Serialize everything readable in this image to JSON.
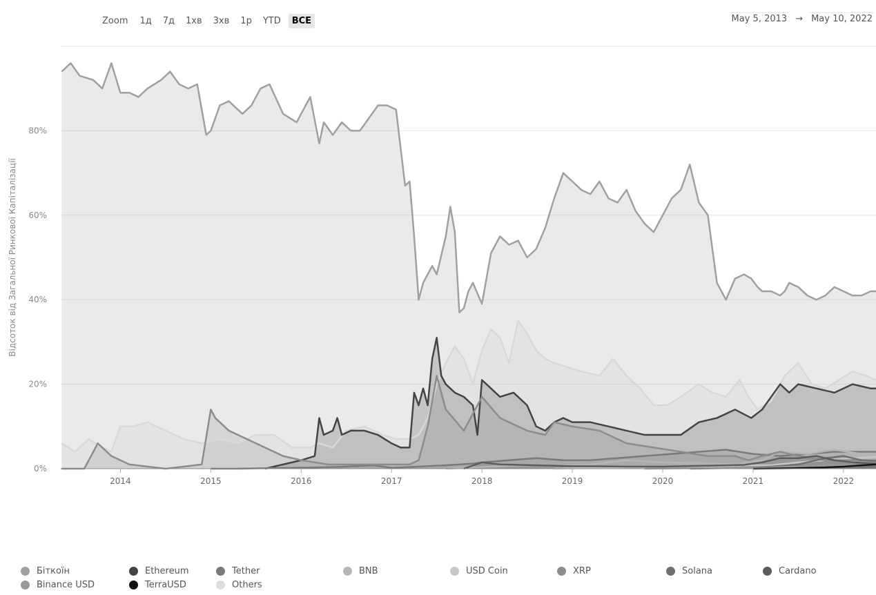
{
  "zoom": {
    "label": "Zoom",
    "buttons": [
      "1д",
      "7д",
      "1хв",
      "3хв",
      "1р",
      "YTD",
      "ВСЕ"
    ],
    "active": "ВСЕ"
  },
  "date_range": {
    "from": "May 5, 2013",
    "arrow": "→",
    "to": "May 10, 2022"
  },
  "chart_data": {
    "type": "area",
    "ylabel": "Відсоток від Загальної Ринкової Капіталізації",
    "xlabel": "",
    "xlim": [
      2013.34,
      2022.36
    ],
    "ylim": [
      0,
      100
    ],
    "y_ticks": [
      0,
      20,
      40,
      60,
      80
    ],
    "y_tick_labels": [
      "0%",
      "20%",
      "40%",
      "60%",
      "80%"
    ],
    "x_ticks": [
      "2014",
      "2015",
      "2016",
      "2017",
      "2018",
      "2019",
      "2020",
      "2021",
      "2022"
    ],
    "grid": true,
    "legend_position": "bottom",
    "series": [
      {
        "name": "Others",
        "color": "#d8d8d8",
        "x": [
          2013.35,
          2013.5,
          2013.65,
          2013.8,
          2013.9,
          2014.0,
          2014.15,
          2014.3,
          2014.5,
          2014.7,
          2014.9,
          2015.1,
          2015.3,
          2015.5,
          2015.7,
          2015.9,
          2016.1,
          2016.2,
          2016.35,
          2016.5,
          2016.7,
          2016.9,
          2017.05,
          2017.2,
          2017.3,
          2017.4,
          2017.5,
          2017.6,
          2017.7,
          2017.8,
          2017.9,
          2018.0,
          2018.1,
          2018.2,
          2018.3,
          2018.4,
          2018.5,
          2018.6,
          2018.7,
          2018.8,
          2018.95,
          2019.1,
          2019.3,
          2019.45,
          2019.6,
          2019.75,
          2019.9,
          2020.05,
          2020.2,
          2020.4,
          2020.55,
          2020.7,
          2020.85,
          2020.95,
          2021.05,
          2021.2,
          2021.35,
          2021.5,
          2021.65,
          2021.8,
          2021.95,
          2022.1,
          2022.25,
          2022.36
        ],
        "values": [
          6,
          4,
          7,
          5,
          4,
          10,
          10,
          11,
          9,
          7,
          6,
          7,
          6,
          8,
          8,
          5,
          5,
          6,
          5,
          9,
          10,
          8,
          7,
          7,
          8,
          12,
          20,
          25,
          29,
          26,
          20,
          28,
          33,
          31,
          25,
          35,
          32,
          28,
          26,
          25,
          24,
          23,
          22,
          26,
          22,
          19,
          15,
          15,
          17,
          20,
          18,
          17,
          21,
          17,
          14,
          16,
          22,
          25,
          20,
          19,
          21,
          23,
          22,
          21
        ]
      },
      {
        "name": "Біткоїн",
        "color": "#a0a0a0",
        "x": [
          2013.35,
          2013.45,
          2013.55,
          2013.7,
          2013.8,
          2013.9,
          2014.0,
          2014.1,
          2014.2,
          2014.3,
          2014.45,
          2014.55,
          2014.65,
          2014.75,
          2014.85,
          2014.95,
          2015.0,
          2015.1,
          2015.2,
          2015.35,
          2015.45,
          2015.55,
          2015.65,
          2015.8,
          2015.95,
          2016.1,
          2016.2,
          2016.25,
          2016.35,
          2016.45,
          2016.55,
          2016.65,
          2016.75,
          2016.85,
          2016.95,
          2017.05,
          2017.15,
          2017.2,
          2017.25,
          2017.3,
          2017.35,
          2017.45,
          2017.5,
          2017.6,
          2017.65,
          2017.7,
          2017.75,
          2017.8,
          2017.85,
          2017.9,
          2018.0,
          2018.1,
          2018.2,
          2018.3,
          2018.4,
          2018.5,
          2018.6,
          2018.7,
          2018.8,
          2018.9,
          2019.0,
          2019.1,
          2019.2,
          2019.3,
          2019.4,
          2019.5,
          2019.6,
          2019.7,
          2019.8,
          2019.9,
          2020.0,
          2020.1,
          2020.2,
          2020.3,
          2020.4,
          2020.5,
          2020.6,
          2020.7,
          2020.8,
          2020.9,
          2020.98,
          2021.05,
          2021.1,
          2021.2,
          2021.3,
          2021.35,
          2021.4,
          2021.5,
          2021.6,
          2021.7,
          2021.8,
          2021.9,
          2022.0,
          2022.1,
          2022.2,
          2022.3,
          2022.36
        ],
        "values": [
          94,
          96,
          93,
          92,
          90,
          96,
          89,
          89,
          88,
          90,
          92,
          94,
          91,
          90,
          91,
          79,
          80,
          86,
          87,
          84,
          86,
          90,
          91,
          84,
          82,
          88,
          77,
          82,
          79,
          82,
          80,
          80,
          83,
          86,
          86,
          85,
          67,
          68,
          55,
          40,
          44,
          48,
          46,
          55,
          62,
          56,
          37,
          38,
          42,
          44,
          39,
          51,
          55,
          53,
          54,
          50,
          52,
          57,
          64,
          70,
          68,
          66,
          65,
          68,
          64,
          63,
          66,
          61,
          58,
          56,
          60,
          64,
          66,
          72,
          63,
          60,
          44,
          40,
          45,
          46,
          45,
          43,
          42,
          42,
          41,
          42,
          44,
          43,
          41,
          40,
          41,
          43,
          42,
          41,
          41,
          42,
          42
        ]
      },
      {
        "name": "Ethereum",
        "color": "#444444",
        "x": [
          2015.6,
          2015.8,
          2016.0,
          2016.15,
          2016.2,
          2016.25,
          2016.35,
          2016.4,
          2016.45,
          2016.55,
          2016.7,
          2016.85,
          2017.0,
          2017.1,
          2017.2,
          2017.25,
          2017.3,
          2017.35,
          2017.4,
          2017.45,
          2017.5,
          2017.55,
          2017.6,
          2017.7,
          2017.8,
          2017.9,
          2017.95,
          2018.0,
          2018.1,
          2018.2,
          2018.35,
          2018.5,
          2018.6,
          2018.7,
          2018.8,
          2018.9,
          2019.0,
          2019.2,
          2019.4,
          2019.6,
          2019.8,
          2020.0,
          2020.2,
          2020.4,
          2020.6,
          2020.8,
          2020.98,
          2021.1,
          2021.2,
          2021.3,
          2021.4,
          2021.5,
          2021.7,
          2021.9,
          2022.1,
          2022.3,
          2022.36
        ],
        "values": [
          0,
          1,
          2,
          3,
          12,
          8,
          9,
          12,
          8,
          9,
          9,
          8,
          6,
          5,
          5,
          18,
          15,
          19,
          15,
          26,
          31,
          22,
          20,
          18,
          17,
          15,
          8,
          21,
          19,
          17,
          18,
          15,
          10,
          9,
          11,
          12,
          11,
          11,
          10,
          9,
          8,
          8,
          8,
          11,
          12,
          14,
          12,
          14,
          17,
          20,
          18,
          20,
          19,
          18,
          20,
          19,
          19
        ]
      },
      {
        "name": "Tether",
        "color": "#7a7a7a",
        "x": [
          2015.0,
          2015.3,
          2015.6,
          2015.9,
          2016.2,
          2016.5,
          2016.8,
          2017.0,
          2017.3,
          2017.6,
          2017.9,
          2018.0,
          2018.3,
          2018.6,
          2018.9,
          2019.2,
          2019.5,
          2019.8,
          2020.1,
          2020.4,
          2020.7,
          2021.0,
          2021.3,
          2021.6,
          2021.9,
          2022.2,
          2022.36
        ],
        "values": [
          0,
          0,
          0.1,
          0.2,
          0.3,
          0.5,
          0.8,
          0.2,
          0.5,
          0.8,
          1.2,
          1.5,
          2,
          2.5,
          2,
          2,
          2.5,
          3,
          3.5,
          4,
          4.5,
          3.5,
          3,
          3.5,
          4,
          4,
          4
        ]
      },
      {
        "name": "BNB",
        "color": "#b5b5b5",
        "x": [
          2017.6,
          2017.9,
          2018.2,
          2018.5,
          2018.8,
          2019.2,
          2019.6,
          2020.0,
          2020.4,
          2020.8,
          2021.1,
          2021.3,
          2021.6,
          2021.9,
          2022.2,
          2022.36
        ],
        "values": [
          0,
          0.3,
          0.6,
          0.8,
          0.7,
          1,
          2,
          1.5,
          1.3,
          1,
          2,
          4,
          3.5,
          4.5,
          3.5,
          3.5
        ]
      },
      {
        "name": "USD Coin",
        "color": "#c8c8c8",
        "x": [
          2018.8,
          2019.2,
          2019.6,
          2020.0,
          2020.5,
          2020.9,
          2021.2,
          2021.5,
          2021.8,
          2022.1,
          2022.36
        ],
        "values": [
          0,
          0.2,
          0.3,
          0.3,
          0.5,
          0.8,
          0.8,
          1.5,
          2,
          2.5,
          2.8
        ]
      },
      {
        "name": "XRP",
        "color": "#8c8c8c",
        "x": [
          2013.35,
          2013.6,
          2013.75,
          2013.9,
          2014.1,
          2014.5,
          2014.9,
          2015.0,
          2015.05,
          2015.2,
          2015.5,
          2015.8,
          2016.0,
          2016.3,
          2016.6,
          2016.9,
          2017.2,
          2017.3,
          2017.4,
          2017.5,
          2017.6,
          2017.8,
          2017.95,
          2018.0,
          2018.2,
          2018.5,
          2018.7,
          2018.8,
          2019.0,
          2019.3,
          2019.6,
          2019.9,
          2020.2,
          2020.5,
          2020.8,
          2020.95,
          2021.1,
          2021.3,
          2021.5,
          2021.8,
          2022.1,
          2022.36
        ],
        "values": [
          0,
          0,
          6,
          3,
          1,
          0,
          1,
          14,
          12,
          9,
          6,
          3,
          2,
          1,
          1,
          1,
          1,
          2,
          10,
          22,
          14,
          9,
          15,
          17,
          12,
          9,
          8,
          11,
          10,
          9,
          6,
          5,
          4,
          3,
          3,
          2,
          3,
          4,
          3,
          2,
          2,
          2
        ]
      },
      {
        "name": "Solana",
        "color": "#707070",
        "x": [
          2020.3,
          2020.6,
          2020.9,
          2021.2,
          2021.5,
          2021.8,
          2022.0,
          2022.2,
          2022.36
        ],
        "values": [
          0,
          0.1,
          0.2,
          0.5,
          1,
          2.5,
          3,
          2,
          1.8
        ]
      },
      {
        "name": "Cardano",
        "color": "#5c5c5c",
        "x": [
          2017.8,
          2018.0,
          2018.2,
          2018.6,
          2019.0,
          2019.6,
          2020.0,
          2020.5,
          2020.9,
          2021.1,
          2021.3,
          2021.5,
          2021.7,
          2021.9,
          2022.1,
          2022.36
        ],
        "values": [
          0,
          1.5,
          1,
          0.8,
          0.6,
          0.5,
          0.5,
          0.7,
          0.9,
          1.5,
          2.5,
          2.5,
          3,
          2,
          1.5,
          1.2
        ]
      },
      {
        "name": "Binance USD",
        "color": "#999999",
        "x": [
          2019.8,
          2020.3,
          2020.8,
          2021.2,
          2021.6,
          2022.0,
          2022.36
        ],
        "values": [
          0,
          0.1,
          0.2,
          0.3,
          0.6,
          0.8,
          0.9
        ]
      },
      {
        "name": "TerraUSD",
        "color": "#111111",
        "x": [
          2021.0,
          2021.4,
          2021.8,
          2022.0,
          2022.2,
          2022.36
        ],
        "values": [
          0,
          0.1,
          0.3,
          0.5,
          0.8,
          1
        ]
      }
    ]
  },
  "legend": [
    {
      "name": "Біткоїн",
      "color": "#a0a0a0"
    },
    {
      "name": "Ethereum",
      "color": "#444444"
    },
    {
      "name": "Tether",
      "color": "#7a7a7a"
    },
    {
      "name": "BNB",
      "color": "#b5b5b5"
    },
    {
      "name": "USD Coin",
      "color": "#c8c8c8"
    },
    {
      "name": "XRP",
      "color": "#8c8c8c"
    },
    {
      "name": "Solana",
      "color": "#707070"
    },
    {
      "name": "Cardano",
      "color": "#5c5c5c"
    },
    {
      "name": "Binance USD",
      "color": "#999999"
    },
    {
      "name": "TerraUSD",
      "color": "#111111"
    },
    {
      "name": "Others",
      "color": "#dddddd"
    }
  ]
}
